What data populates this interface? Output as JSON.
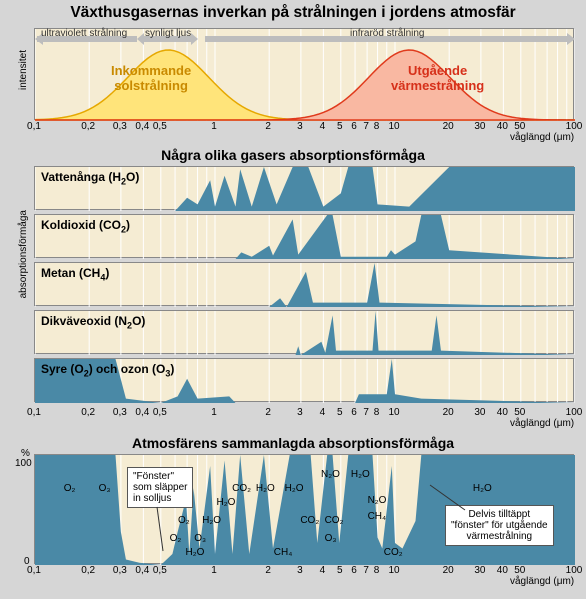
{
  "main_title": "Växthusgasernas inverkan på strålningen i jordens atmosfär",
  "colors": {
    "panel_bg": "#f5ecd3",
    "page_bg": "#d6d6d6",
    "solar_fill": "#ffe47a",
    "solar_stroke": "#e6a800",
    "thermal_fill": "#f9b8a2",
    "thermal_stroke": "#e03a1c",
    "gas_fill": "#4a89a6",
    "arrow_gray": "#bdbdbd",
    "grid": "#ffffff"
  },
  "xaxis": {
    "label": "våglängd (μm)",
    "min_log": -1,
    "max_log": 2,
    "ticks": [
      {
        "v": 0.1,
        "l": "0,1"
      },
      {
        "v": 0.2,
        "l": "0,2"
      },
      {
        "v": 0.3,
        "l": "0,3"
      },
      {
        "v": 0.4,
        "l": "0,4"
      },
      {
        "v": 0.5,
        "l": "0,5"
      },
      {
        "v": 1,
        "l": "1"
      },
      {
        "v": 2,
        "l": "2"
      },
      {
        "v": 3,
        "l": "3"
      },
      {
        "v": 4,
        "l": "4"
      },
      {
        "v": 5,
        "l": "5"
      },
      {
        "v": 6,
        "l": "6"
      },
      {
        "v": 7,
        "l": "7"
      },
      {
        "v": 8,
        "l": "8"
      },
      {
        "v": 10,
        "l": "10"
      },
      {
        "v": 20,
        "l": "20"
      },
      {
        "v": 30,
        "l": "30"
      },
      {
        "v": 40,
        "l": "40"
      },
      {
        "v": 50,
        "l": "50"
      },
      {
        "v": 100,
        "l": "100"
      }
    ]
  },
  "panel1": {
    "ylab": "intensitet",
    "spectrum": {
      "uv": "ultraviolett strålning",
      "vis": "synligt ljus",
      "ir": "infraröd strålning"
    },
    "solar": {
      "label": "Inkommande\nsolstrålning",
      "color_text": "#c98a00"
    },
    "thermal": {
      "label": "Utgående\nvärmestrålning",
      "color_text": "#d6301a"
    }
  },
  "panel2": {
    "title": "Några olika gasers absorptionsförmåga",
    "ylab": "absorptionsförmåga",
    "gases": [
      {
        "name": "Vattenånga (H",
        "sub": "2",
        "tail": "O)"
      },
      {
        "name": "Koldioxid (CO",
        "sub": "2",
        "tail": ")"
      },
      {
        "name": "Metan (CH",
        "sub": "4",
        "tail": ")"
      },
      {
        "name": "Dikväveoxid (N",
        "sub": "2",
        "tail": "O)"
      },
      {
        "name": "Syre (O",
        "sub": "2",
        "tail": ") och ozon (O",
        "sub2": "3",
        "tail2": ")"
      }
    ]
  },
  "panel3": {
    "title": "Atmosfärens sammanlagda absorptionsförmåga",
    "pct_top": "100",
    "pct_bot": "0",
    "pct_unit": "%",
    "callout_left": "\"Fönster\"\nsom släpper\nin solljus",
    "callout_right": "Delvis tilltäppt\n\"fönster\" för utgående\nvärmestrålning",
    "molecules": [
      "O₂",
      "O₃",
      "O₂",
      "O₂",
      "H₂O",
      "O₃",
      "H₂O",
      "H₂O",
      "CO₂",
      "H₂O",
      "CH₄",
      "H₂O",
      "CO₂",
      "N₂O",
      "CO₂",
      "O₃",
      "H₂O",
      "N₂O",
      "CH₄",
      "CO₂",
      "H₂O"
    ]
  }
}
